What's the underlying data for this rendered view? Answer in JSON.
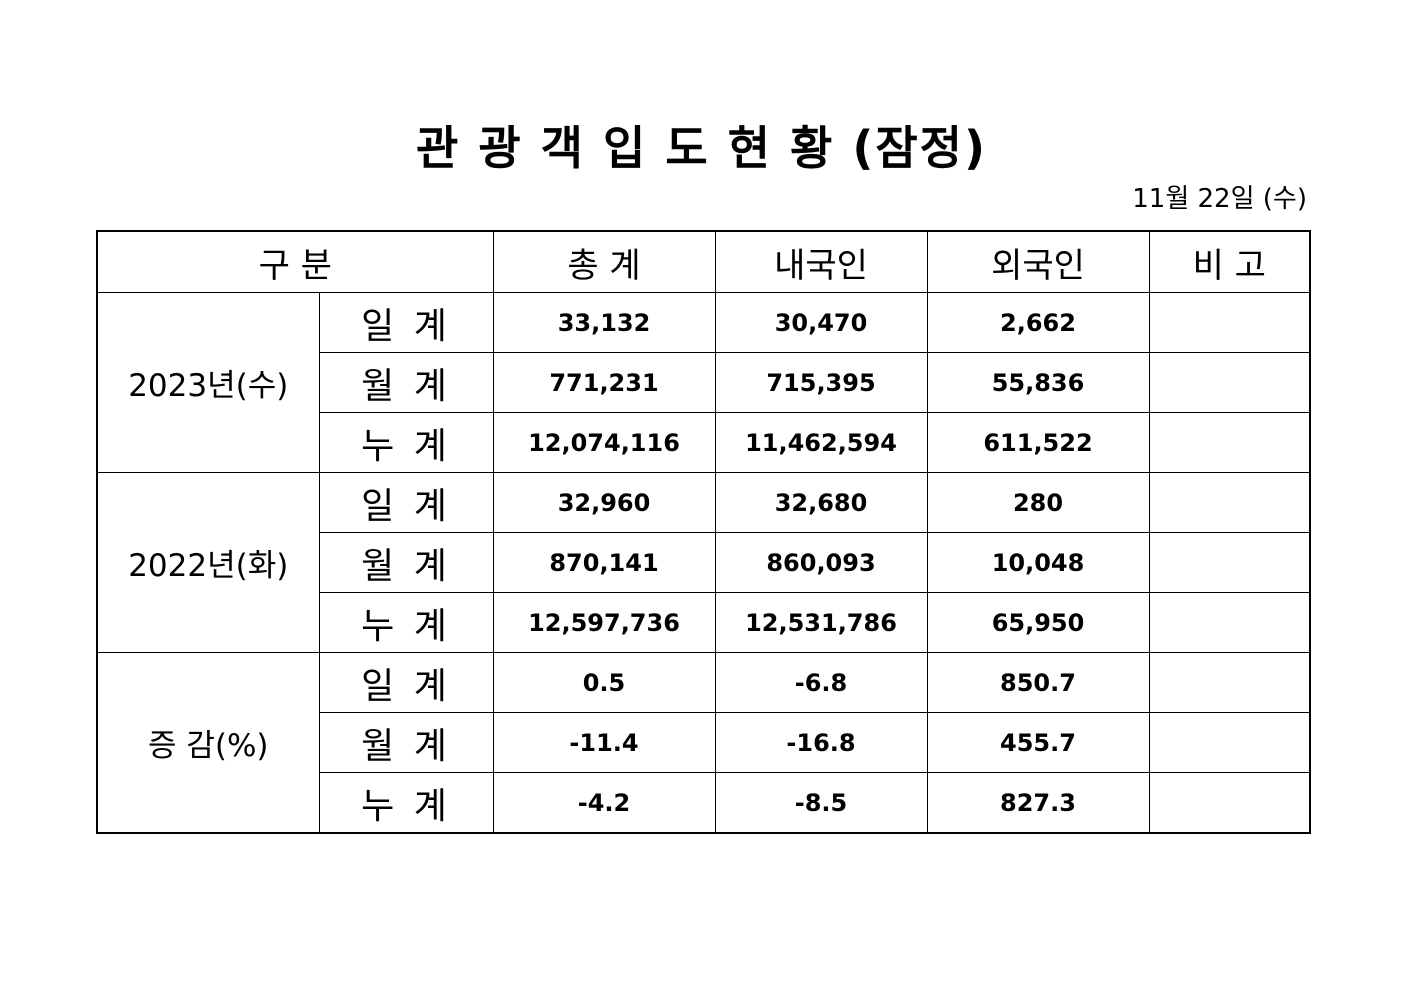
{
  "header": {
    "title": "관 광 객 입 도 현 황 (잠정)",
    "date": "11월 22일 (수)"
  },
  "table": {
    "columns": [
      "구 분",
      "총 계",
      "내국인",
      "외국인",
      "비 고"
    ],
    "groups": [
      {
        "label": "2023년(수)",
        "rows": [
          {
            "label": "일 계",
            "cells": [
              "33,132",
              "30,470",
              "2,662"
            ]
          },
          {
            "label": "월 계",
            "cells": [
              "771,231",
              "715,395",
              "55,836"
            ]
          },
          {
            "label": "누 계",
            "cells": [
              "12,074,116",
              "11,462,594",
              "611,522"
            ]
          }
        ]
      },
      {
        "label": "2022년(화)",
        "rows": [
          {
            "label": "일 계",
            "cells": [
              "32,960",
              "32,680",
              "280"
            ]
          },
          {
            "label": "월 계",
            "cells": [
              "870,141",
              "860,093",
              "10,048"
            ]
          },
          {
            "label": "누 계",
            "cells": [
              "12,597,736",
              "12,531,786",
              "65,950"
            ]
          }
        ]
      },
      {
        "label": "증 감(%)",
        "rows": [
          {
            "label": "일 계",
            "cells": [
              "0.5",
              "-6.8",
              "850.7"
            ]
          },
          {
            "label": "월 계",
            "cells": [
              "-11.4",
              "-16.8",
              "455.7"
            ]
          },
          {
            "label": "누 계",
            "cells": [
              "-4.2",
              "-8.5",
              "827.3"
            ]
          }
        ]
      }
    ]
  }
}
